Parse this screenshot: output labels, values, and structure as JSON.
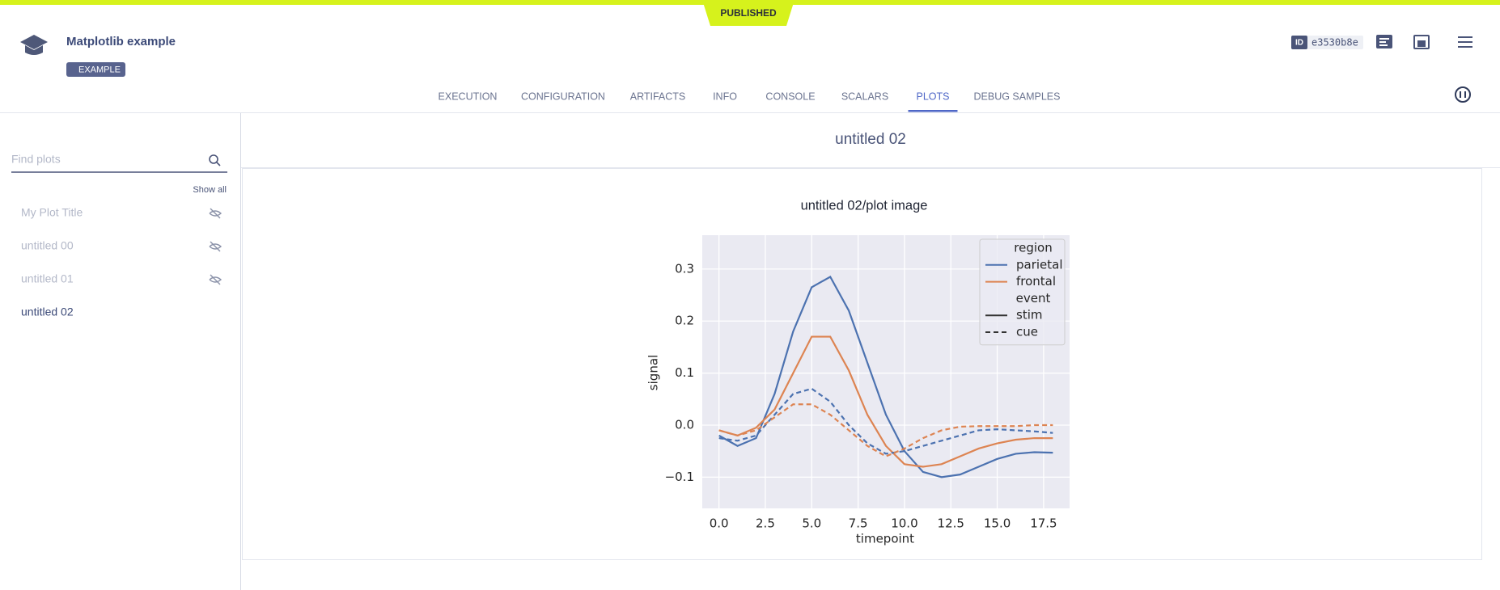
{
  "status": "PUBLISHED",
  "header": {
    "title": "Matplotlib example",
    "tag": "EXAMPLE",
    "id_label": "ID",
    "id": "e3530b8e"
  },
  "tabs": [
    {
      "label": "EXECUTION",
      "active": false
    },
    {
      "label": "CONFIGURATION",
      "active": false
    },
    {
      "label": "ARTIFACTS",
      "active": false
    },
    {
      "label": "INFO",
      "active": false
    },
    {
      "label": "CONSOLE",
      "active": false
    },
    {
      "label": "SCALARS",
      "active": false
    },
    {
      "label": "PLOTS",
      "active": true
    },
    {
      "label": "DEBUG SAMPLES",
      "active": false
    }
  ],
  "sidebar": {
    "search_placeholder": "Find plots",
    "show_all": "Show all",
    "items": [
      {
        "label": "My Plot Title",
        "hidden": true
      },
      {
        "label": "untitled 00",
        "hidden": true
      },
      {
        "label": "untitled 01",
        "hidden": true
      },
      {
        "label": "untitled 02",
        "hidden": false
      }
    ]
  },
  "panel": {
    "title": "untitled 02"
  },
  "chart_data": {
    "type": "line",
    "title": "untitled 02/plot image",
    "xlabel": "timepoint",
    "ylabel": "signal",
    "x": [
      0,
      1,
      2,
      3,
      4,
      5,
      6,
      7,
      8,
      9,
      10,
      11,
      12,
      13,
      14,
      15,
      16,
      17,
      18
    ],
    "series": [
      {
        "color": "#4c72b0",
        "dash": "none",
        "values": [
          -0.02,
          -0.04,
          -0.025,
          0.06,
          0.18,
          0.265,
          0.285,
          0.22,
          0.12,
          0.02,
          -0.05,
          -0.09,
          -0.1,
          -0.095,
          -0.08,
          -0.065,
          -0.055,
          -0.052,
          -0.053
        ]
      },
      {
        "color": "#dd8452",
        "dash": "none",
        "values": [
          -0.01,
          -0.02,
          -0.005,
          0.03,
          0.1,
          0.17,
          0.17,
          0.105,
          0.02,
          -0.04,
          -0.075,
          -0.08,
          -0.075,
          -0.06,
          -0.045,
          -0.035,
          -0.028,
          -0.025,
          -0.025
        ]
      },
      {
        "color": "#4c72b0",
        "dash": "6,4",
        "values": [
          -0.025,
          -0.03,
          -0.02,
          0.02,
          0.06,
          0.07,
          0.045,
          0.0,
          -0.035,
          -0.055,
          -0.05,
          -0.04,
          -0.03,
          -0.02,
          -0.01,
          -0.008,
          -0.01,
          -0.012,
          -0.015
        ]
      },
      {
        "color": "#dd8452",
        "dash": "6,4",
        "values": [
          -0.01,
          -0.02,
          -0.01,
          0.015,
          0.04,
          0.04,
          0.02,
          -0.01,
          -0.04,
          -0.06,
          -0.045,
          -0.025,
          -0.01,
          -0.003,
          -0.002,
          -0.002,
          -0.002,
          0.0,
          0.0
        ]
      }
    ],
    "xlim": [
      -0.9,
      18.9
    ],
    "ylim": [
      -0.16,
      0.365
    ],
    "xticks": [
      {
        "value": 0,
        "label": "0.0"
      },
      2.5,
      {
        "value": 5,
        "label": "5.0"
      },
      7.5,
      {
        "value": 10,
        "label": "10.0"
      },
      12.5,
      {
        "value": 15,
        "label": "15.0"
      },
      17.5
    ],
    "yticks": [
      {
        "value": -0.1,
        "label": "−0.1"
      },
      {
        "value": 0,
        "label": "0.0"
      },
      0.1,
      0.2,
      0.3
    ],
    "grid": true,
    "background": "#eaeaf2",
    "legend": {
      "position": "upper right",
      "hue_title": "region",
      "hue": [
        {
          "name": "parietal",
          "color": "#4c72b0"
        },
        {
          "name": "frontal",
          "color": "#dd8452"
        }
      ],
      "style_title": "event",
      "styles": [
        {
          "name": "stim",
          "dash": "none"
        },
        {
          "name": "cue",
          "dash": "6,4"
        }
      ]
    }
  }
}
